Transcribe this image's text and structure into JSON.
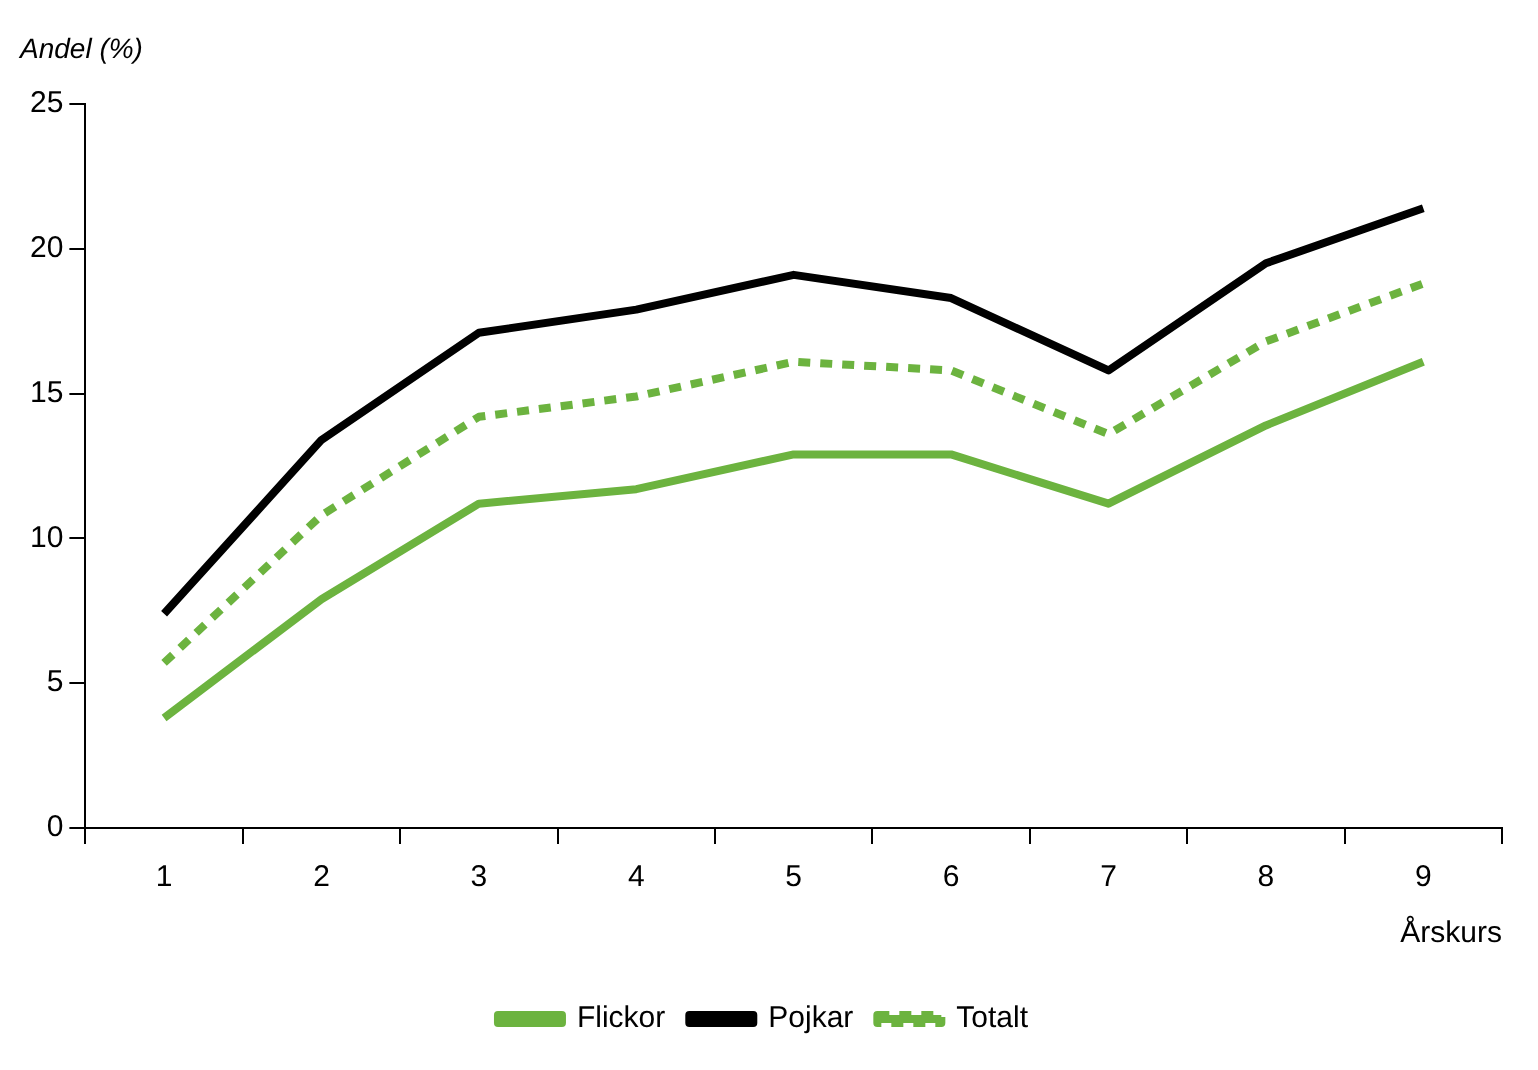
{
  "chart_data": {
    "type": "line",
    "ylabel": "Andel (%)",
    "xlabel": "Årskurs",
    "categories": [
      "1",
      "2",
      "3",
      "4",
      "5",
      "6",
      "7",
      "8",
      "9"
    ],
    "series": [
      {
        "name": "Flickor",
        "color": "#6cb33f",
        "values": [
          3.8,
          7.9,
          11.2,
          11.7,
          12.9,
          12.9,
          11.2,
          13.9,
          16.1
        ]
      },
      {
        "name": "Pojkar",
        "color": "#000000",
        "values": [
          7.4,
          13.4,
          17.1,
          17.9,
          19.1,
          18.3,
          15.8,
          19.5,
          21.4
        ]
      },
      {
        "name": "Totalt",
        "color": "#6cb33f",
        "line_style": "dashed",
        "values": [
          5.7,
          10.8,
          14.2,
          14.9,
          16.1,
          15.8,
          13.6,
          16.8,
          18.8
        ]
      }
    ],
    "ylim": [
      0,
      25
    ],
    "yticks": [
      0,
      5,
      10,
      15,
      20,
      25
    ],
    "grid": false,
    "legend": "bottom",
    "marker": "none"
  }
}
